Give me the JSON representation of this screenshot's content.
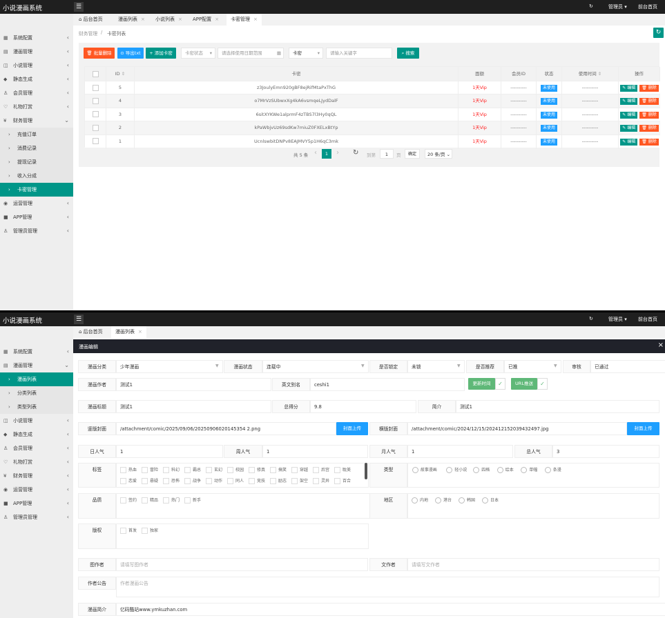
{
  "colors": {
    "header": "#1f1f1f",
    "accent": "#009688",
    "danger": "#FF5722",
    "info": "#1E9FFF",
    "success": "#5FB878",
    "vip": "#FF2222"
  },
  "top": {
    "header": {
      "title": "小说漫画系统",
      "admin": "管理员",
      "frontpage": "前台首页"
    },
    "sidebar": [
      {
        "label": "系统配置",
        "icon": "settings-icon"
      },
      {
        "label": "漫画管理",
        "icon": "comic-icon"
      },
      {
        "label": "小说管理",
        "icon": "book-icon"
      },
      {
        "label": "静态生成",
        "icon": "cap-icon"
      },
      {
        "label": "会员管理",
        "icon": "user-icon"
      },
      {
        "label": "礼物打赏",
        "icon": "gift-icon"
      },
      {
        "label": "财务管理",
        "icon": "yen-icon",
        "expanded": true
      },
      {
        "label": "充值订单",
        "sub": true
      },
      {
        "label": "消费记录",
        "sub": true
      },
      {
        "label": "提现记录",
        "sub": true
      },
      {
        "label": "收入分成",
        "sub": true
      },
      {
        "label": "卡密管理",
        "sub": true,
        "active": true
      },
      {
        "label": "运营管理",
        "icon": "globe-icon"
      },
      {
        "label": "APP管理",
        "icon": "windows-icon"
      },
      {
        "label": "管理员管理",
        "icon": "admin-icon"
      }
    ],
    "tabs": [
      {
        "label": "后台首页",
        "home": true
      },
      {
        "label": "漫画列表",
        "closable": true
      },
      {
        "label": "小说列表",
        "closable": true
      },
      {
        "label": "APP配置",
        "closable": true
      },
      {
        "label": "卡密管理",
        "closable": true,
        "active": true
      }
    ],
    "breadcrumb": [
      "财务管理",
      "卡密列表"
    ],
    "toolbar": {
      "batch_delete": "批量删除",
      "export": "导出txt",
      "add": "添加卡密",
      "status_placeholder": "卡密状态",
      "date_placeholder": "请选择使用日期范围",
      "field_select": "卡密",
      "keyword_placeholder": "请输入关键字",
      "search": "搜索"
    },
    "table": {
      "headers": [
        "ID",
        "卡密",
        "面额",
        "会员ID",
        "状态",
        "使用时间",
        "操作"
      ],
      "rows": [
        {
          "id": "5",
          "card": "z3JoulyEmn920gBF8ejRifMtaPxThG",
          "value": "1天Vip",
          "member": "----------",
          "status": "未使用",
          "used_time": "----------"
        },
        {
          "id": "4",
          "card": "o7MrVzSUbwxXg4kA6vsmqeLJydDalF",
          "value": "1天Vip",
          "member": "----------",
          "status": "未使用",
          "used_time": "----------"
        },
        {
          "id": "3",
          "card": "6sitXYKWe1alprmF4zTBS7l3Hy0qQL",
          "value": "1天Vip",
          "member": "----------",
          "status": "未使用",
          "used_time": "----------"
        },
        {
          "id": "2",
          "card": "kPaWbjvUz69sdKw7miuZ0FXELxBtYp",
          "value": "1天Vip",
          "member": "----------",
          "status": "未使用",
          "used_time": "----------"
        },
        {
          "id": "1",
          "card": "UcnlswbitDNPv8EAJMVY5p1H6qC3mk",
          "value": "1天Vip",
          "member": "----------",
          "status": "未使用",
          "used_time": "----------"
        }
      ],
      "edit": "编辑",
      "delete": "删除"
    },
    "pagination": {
      "total": "共 5 条",
      "page": "1",
      "goto": "到第",
      "goto_value": "1",
      "page_unit": "页",
      "confirm": "确定",
      "per_page": "20 条/页"
    }
  },
  "bottom": {
    "header": {
      "title": "小说漫画系统",
      "admin": "管理员",
      "frontpage": "前台首页"
    },
    "sidebar": [
      {
        "label": "系统配置",
        "icon": "settings-icon"
      },
      {
        "label": "漫画管理",
        "icon": "comic-icon",
        "expanded": true
      },
      {
        "label": "漫画列表",
        "sub": true,
        "active": true
      },
      {
        "label": "分类列表",
        "sub": true
      },
      {
        "label": "类型列表",
        "sub": true
      },
      {
        "label": "小说管理",
        "icon": "book-icon"
      },
      {
        "label": "静态生成",
        "icon": "cap-icon"
      },
      {
        "label": "会员管理",
        "icon": "user-icon"
      },
      {
        "label": "礼物打赏",
        "icon": "gift-icon"
      },
      {
        "label": "财务管理",
        "icon": "yen-icon"
      },
      {
        "label": "运营管理",
        "icon": "globe-icon"
      },
      {
        "label": "APP管理",
        "icon": "windows-icon"
      },
      {
        "label": "管理员管理",
        "icon": "admin-icon"
      }
    ],
    "tabs": [
      {
        "label": "后台首页",
        "home": true
      },
      {
        "label": "漫画列表",
        "closable": true,
        "active": true
      }
    ],
    "dialog_title": "漫画编辑",
    "form": {
      "category": {
        "label": "漫画分类",
        "value": "少年漫画"
      },
      "status": {
        "label": "漫画状态",
        "value": "连载中"
      },
      "locked": {
        "label": "是否锁定",
        "value": "未锁"
      },
      "recommend": {
        "label": "是否推荐",
        "value": "已推"
      },
      "review": {
        "label": "审核",
        "value": "已通过"
      },
      "author": {
        "label": "漫画作者",
        "value": "测试1"
      },
      "alias": {
        "label": "英文别名",
        "value": "ceshi1"
      },
      "update_time": {
        "label": "更新时间",
        "checked": true
      },
      "url_push": {
        "label": "URL推送",
        "checked": true
      },
      "title": {
        "label": "漫画标题",
        "value": "测试1"
      },
      "score": {
        "label": "总得分",
        "value": "9.8"
      },
      "brief": {
        "label": "简介",
        "value": "测试1"
      },
      "v_cover": {
        "label": "竖版封面",
        "value": "/attachment/comic/2025/09/06/20250906020145354 2.png",
        "button": "封面上传"
      },
      "h_cover": {
        "label": "横版封面",
        "value": "/attachment/comic/2024/12/15/202412152039432497.jpg",
        "button": "封面上传"
      },
      "day_pop": {
        "label": "日人气",
        "value": "1"
      },
      "week_pop": {
        "label": "周人气",
        "value": "1"
      },
      "month_pop": {
        "label": "月人气",
        "value": "1"
      },
      "total_pop": {
        "label": "总人气",
        "value": "3"
      },
      "tags": {
        "label": "标签",
        "options": [
          "热血",
          "冒险",
          "科幻",
          "霸总",
          "玄幻",
          "校园",
          "修真",
          "搞笑",
          "穿越",
          "后宫",
          "耽美",
          "恋爱",
          "悬疑",
          "恐怖",
          "战争",
          "动作",
          "同人",
          "竞技",
          "励志",
          "架空",
          "灵异",
          "百合"
        ]
      },
      "type": {
        "label": "类型",
        "options": [
          "故事漫画",
          "轻小说",
          "四格",
          "绘本",
          "单幅",
          "条漫"
        ]
      },
      "quality": {
        "label": "品质",
        "options": [
          "签约",
          "精品",
          "热门",
          "新手"
        ]
      },
      "region": {
        "label": "地区",
        "options": [
          "内地",
          "港台",
          "韩国",
          "日本"
        ]
      },
      "copyright": {
        "label": "版权",
        "options": [
          "首发",
          "独家"
        ]
      },
      "illustrator": {
        "label": "图作者",
        "placeholder": "请填写图作者"
      },
      "writer": {
        "label": "文作者",
        "placeholder": "请填写文作者"
      },
      "notice": {
        "label": "作者公告",
        "placeholder": "作者漫画公告"
      },
      "intro": {
        "label": "漫画简介",
        "value": "亿码酷站www.ymkuzhan.com"
      }
    }
  }
}
